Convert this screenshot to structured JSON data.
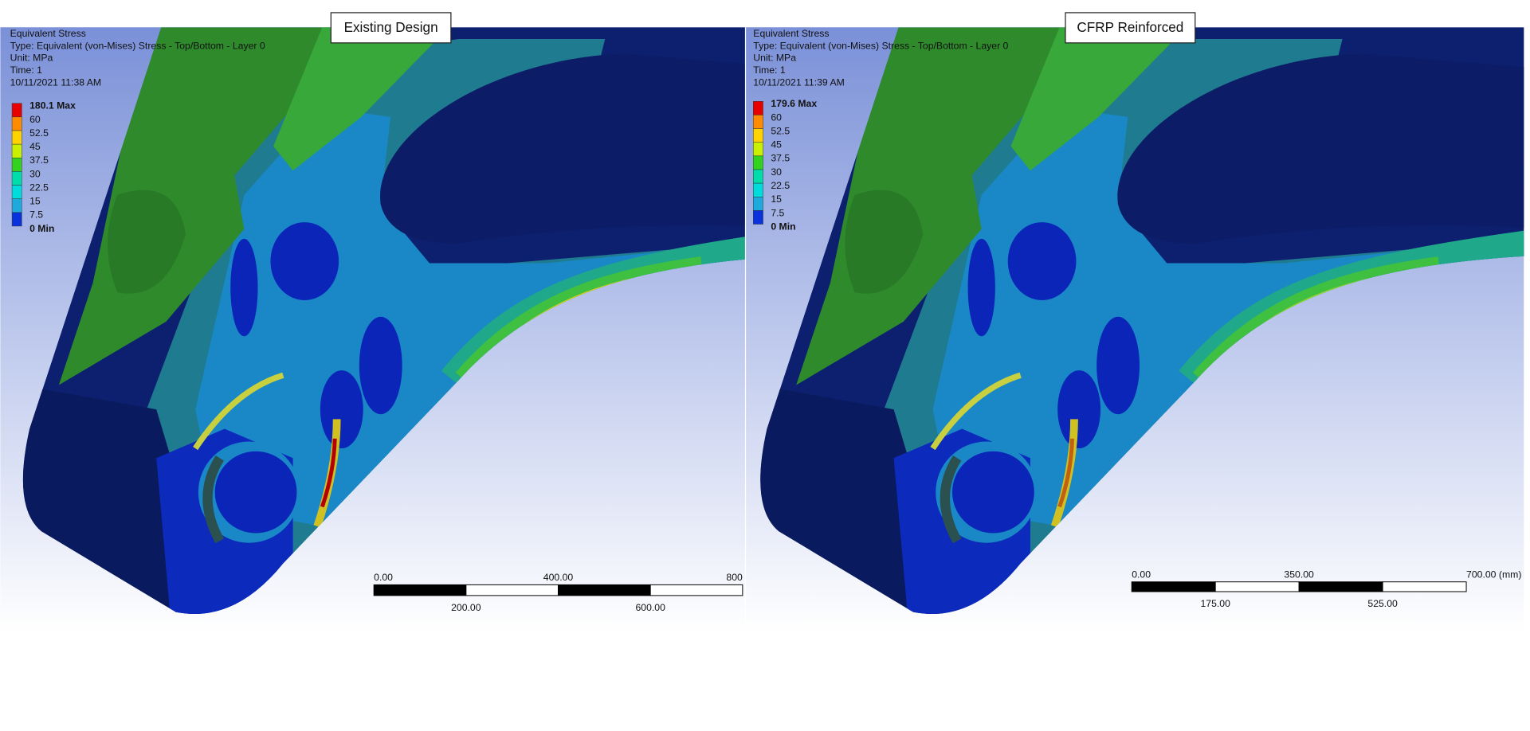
{
  "panels": [
    {
      "title": "Existing Design",
      "info": [
        "Equivalent Stress",
        "Type: Equivalent (von-Mises) Stress - Top/Bottom - Layer 0",
        "Unit: MPa",
        "Time: 1",
        "10/11/2021 11:38 AM"
      ],
      "legend": [
        "180.1 Max",
        "60",
        "52.5",
        "45",
        "37.5",
        "30",
        "22.5",
        "15",
        "7.5",
        "0 Min"
      ],
      "scale_top": [
        "0.00",
        "400.00",
        "800"
      ],
      "scale_bottom": [
        "200.00",
        "600.00"
      ]
    },
    {
      "title": "CFRP Reinforced",
      "info": [
        "Equivalent Stress",
        "Type: Equivalent (von-Mises) Stress - Top/Bottom - Layer 0",
        "Unit: MPa",
        "Time: 1",
        "10/11/2021 11:39 AM"
      ],
      "legend": [
        "179.6 Max",
        "60",
        "52.5",
        "45",
        "37.5",
        "30",
        "22.5",
        "15",
        "7.5",
        "0 Min"
      ],
      "scale_top": [
        "0.00",
        "350.00",
        "700.00 (mm)"
      ],
      "scale_bottom": [
        "175.00",
        "525.00"
      ]
    }
  ]
}
